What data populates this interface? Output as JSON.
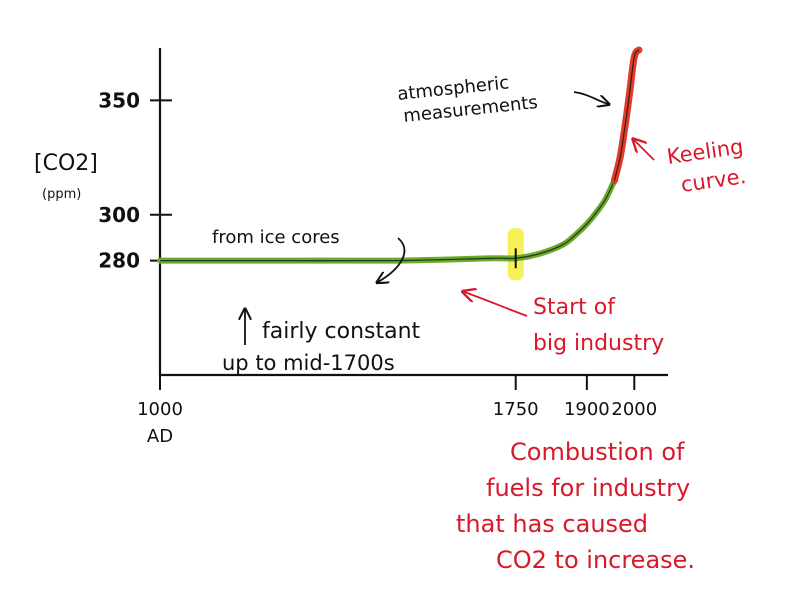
{
  "chart_data": {
    "type": "line",
    "ylabel": "[CO2]",
    "yunit": "(ppm)",
    "xlim": [
      1000,
      2050
    ],
    "ylim": [
      230,
      372
    ],
    "y_ticks": [
      {
        "value": 280,
        "label": "280"
      },
      {
        "value": 300,
        "label": "300"
      },
      {
        "value": 350,
        "label": "350"
      }
    ],
    "x_ticks": [
      {
        "value": 1000,
        "label": "1000",
        "sublabel": "AD"
      },
      {
        "value": 1750,
        "label": "1750"
      },
      {
        "value": 1900,
        "label": "1900"
      },
      {
        "value": 2000,
        "label": "2000"
      }
    ],
    "series": [
      {
        "id": "ice_cores",
        "color": "#6aab2a",
        "x": [
          1000,
          1250,
          1500,
          1700,
          1750,
          1800,
          1850,
          1880,
          1900,
          1920,
          1940,
          1958
        ],
        "y": [
          280,
          280,
          280,
          281,
          281,
          283,
          287,
          292,
          296,
          301,
          307,
          315
        ]
      },
      {
        "id": "atmospheric_measurements",
        "color": "#e03a2a",
        "x": [
          1958,
          1970,
          1980,
          1990,
          2000,
          2010
        ],
        "y": [
          315,
          325,
          338,
          353,
          369,
          372
        ]
      }
    ],
    "highlight": {
      "x": 1750,
      "color": "#f5ef3a"
    },
    "annotations": {
      "ice": "from ice cores",
      "atmos_line1": "atmospheric",
      "atmos_line2": "measurements",
      "constant_line1": "fairly constant",
      "constant_line2": "up to mid-1700s",
      "start_line1": "Start of",
      "start_line2": "big industry",
      "keeling_line1": "Keeling",
      "keeling_line2": "curve.",
      "note_lines": [
        "Combustion of",
        "fuels for industry",
        "that has caused",
        "CO2 to increase."
      ]
    }
  }
}
